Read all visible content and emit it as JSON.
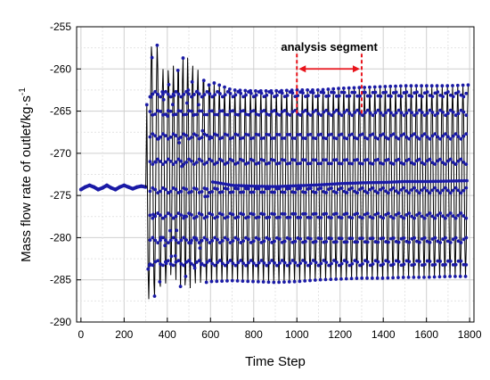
{
  "chart_data": {
    "type": "line",
    "title": "",
    "xlabel": "Time Step",
    "ylabel_main": "Mass flow rate of outlet/kg·s",
    "ylabel_sup": "-1",
    "xlim": [
      -20,
      1820
    ],
    "ylim": [
      -290,
      -255
    ],
    "xticks": [
      0,
      200,
      400,
      600,
      800,
      1000,
      1200,
      1400,
      1600,
      1800
    ],
    "yticks": [
      -255,
      -260,
      -265,
      -270,
      -275,
      -280,
      -285,
      -290
    ],
    "grid": true,
    "colors": {
      "line": "#000000",
      "marker": "#1a1aa6",
      "annotation": "#e8141c"
    },
    "series": [
      {
        "description": "steady region (time steps 0-300), approx. -274 with slight ripple",
        "x": [
          0,
          20,
          40,
          60,
          80,
          100,
          120,
          140,
          160,
          180,
          200,
          220,
          240,
          260,
          280,
          300
        ],
        "values": [
          -274.3,
          -274.0,
          -273.8,
          -274.0,
          -274.3,
          -274.1,
          -273.8,
          -274.1,
          -274.3,
          -274.0,
          -273.8,
          -274.0,
          -274.2,
          -274.0,
          -273.9,
          -274.0
        ]
      },
      {
        "description": "oscillation envelope after step 300 (upper / lower extremes)",
        "x": [
          310,
          340,
          380,
          420,
          480,
          540,
          600,
          700,
          800,
          900,
          1000,
          1100,
          1200,
          1300,
          1400,
          1500,
          1600,
          1700,
          1790
        ],
        "upper": [
          -258.5,
          -255.7,
          -260.0,
          -259.8,
          -258.2,
          -260.0,
          -261.5,
          -262.5,
          -262.6,
          -262.6,
          -262.5,
          -262.5,
          -262.3,
          -262.2,
          -262.1,
          -262.0,
          -262.0,
          -262.0,
          -261.9
        ],
        "lower": [
          -287.3,
          -287.3,
          -286.0,
          -284.5,
          -286.5,
          -285.5,
          -285.2,
          -285.1,
          -285.2,
          -285.3,
          -285.2,
          -285.0,
          -284.9,
          -284.8,
          -284.8,
          -284.7,
          -284.7,
          -284.6,
          -284.6
        ]
      }
    ],
    "band_levels": [
      -263.0,
      -265.2,
      -268.0,
      -271.0,
      -274.4,
      -277.4,
      -280.3,
      -283.0
    ],
    "annotation": {
      "label": "analysis segment",
      "x_start": 1000,
      "x_end": 1300,
      "y_arrow": -260.0,
      "y_label": -258.5
    }
  }
}
